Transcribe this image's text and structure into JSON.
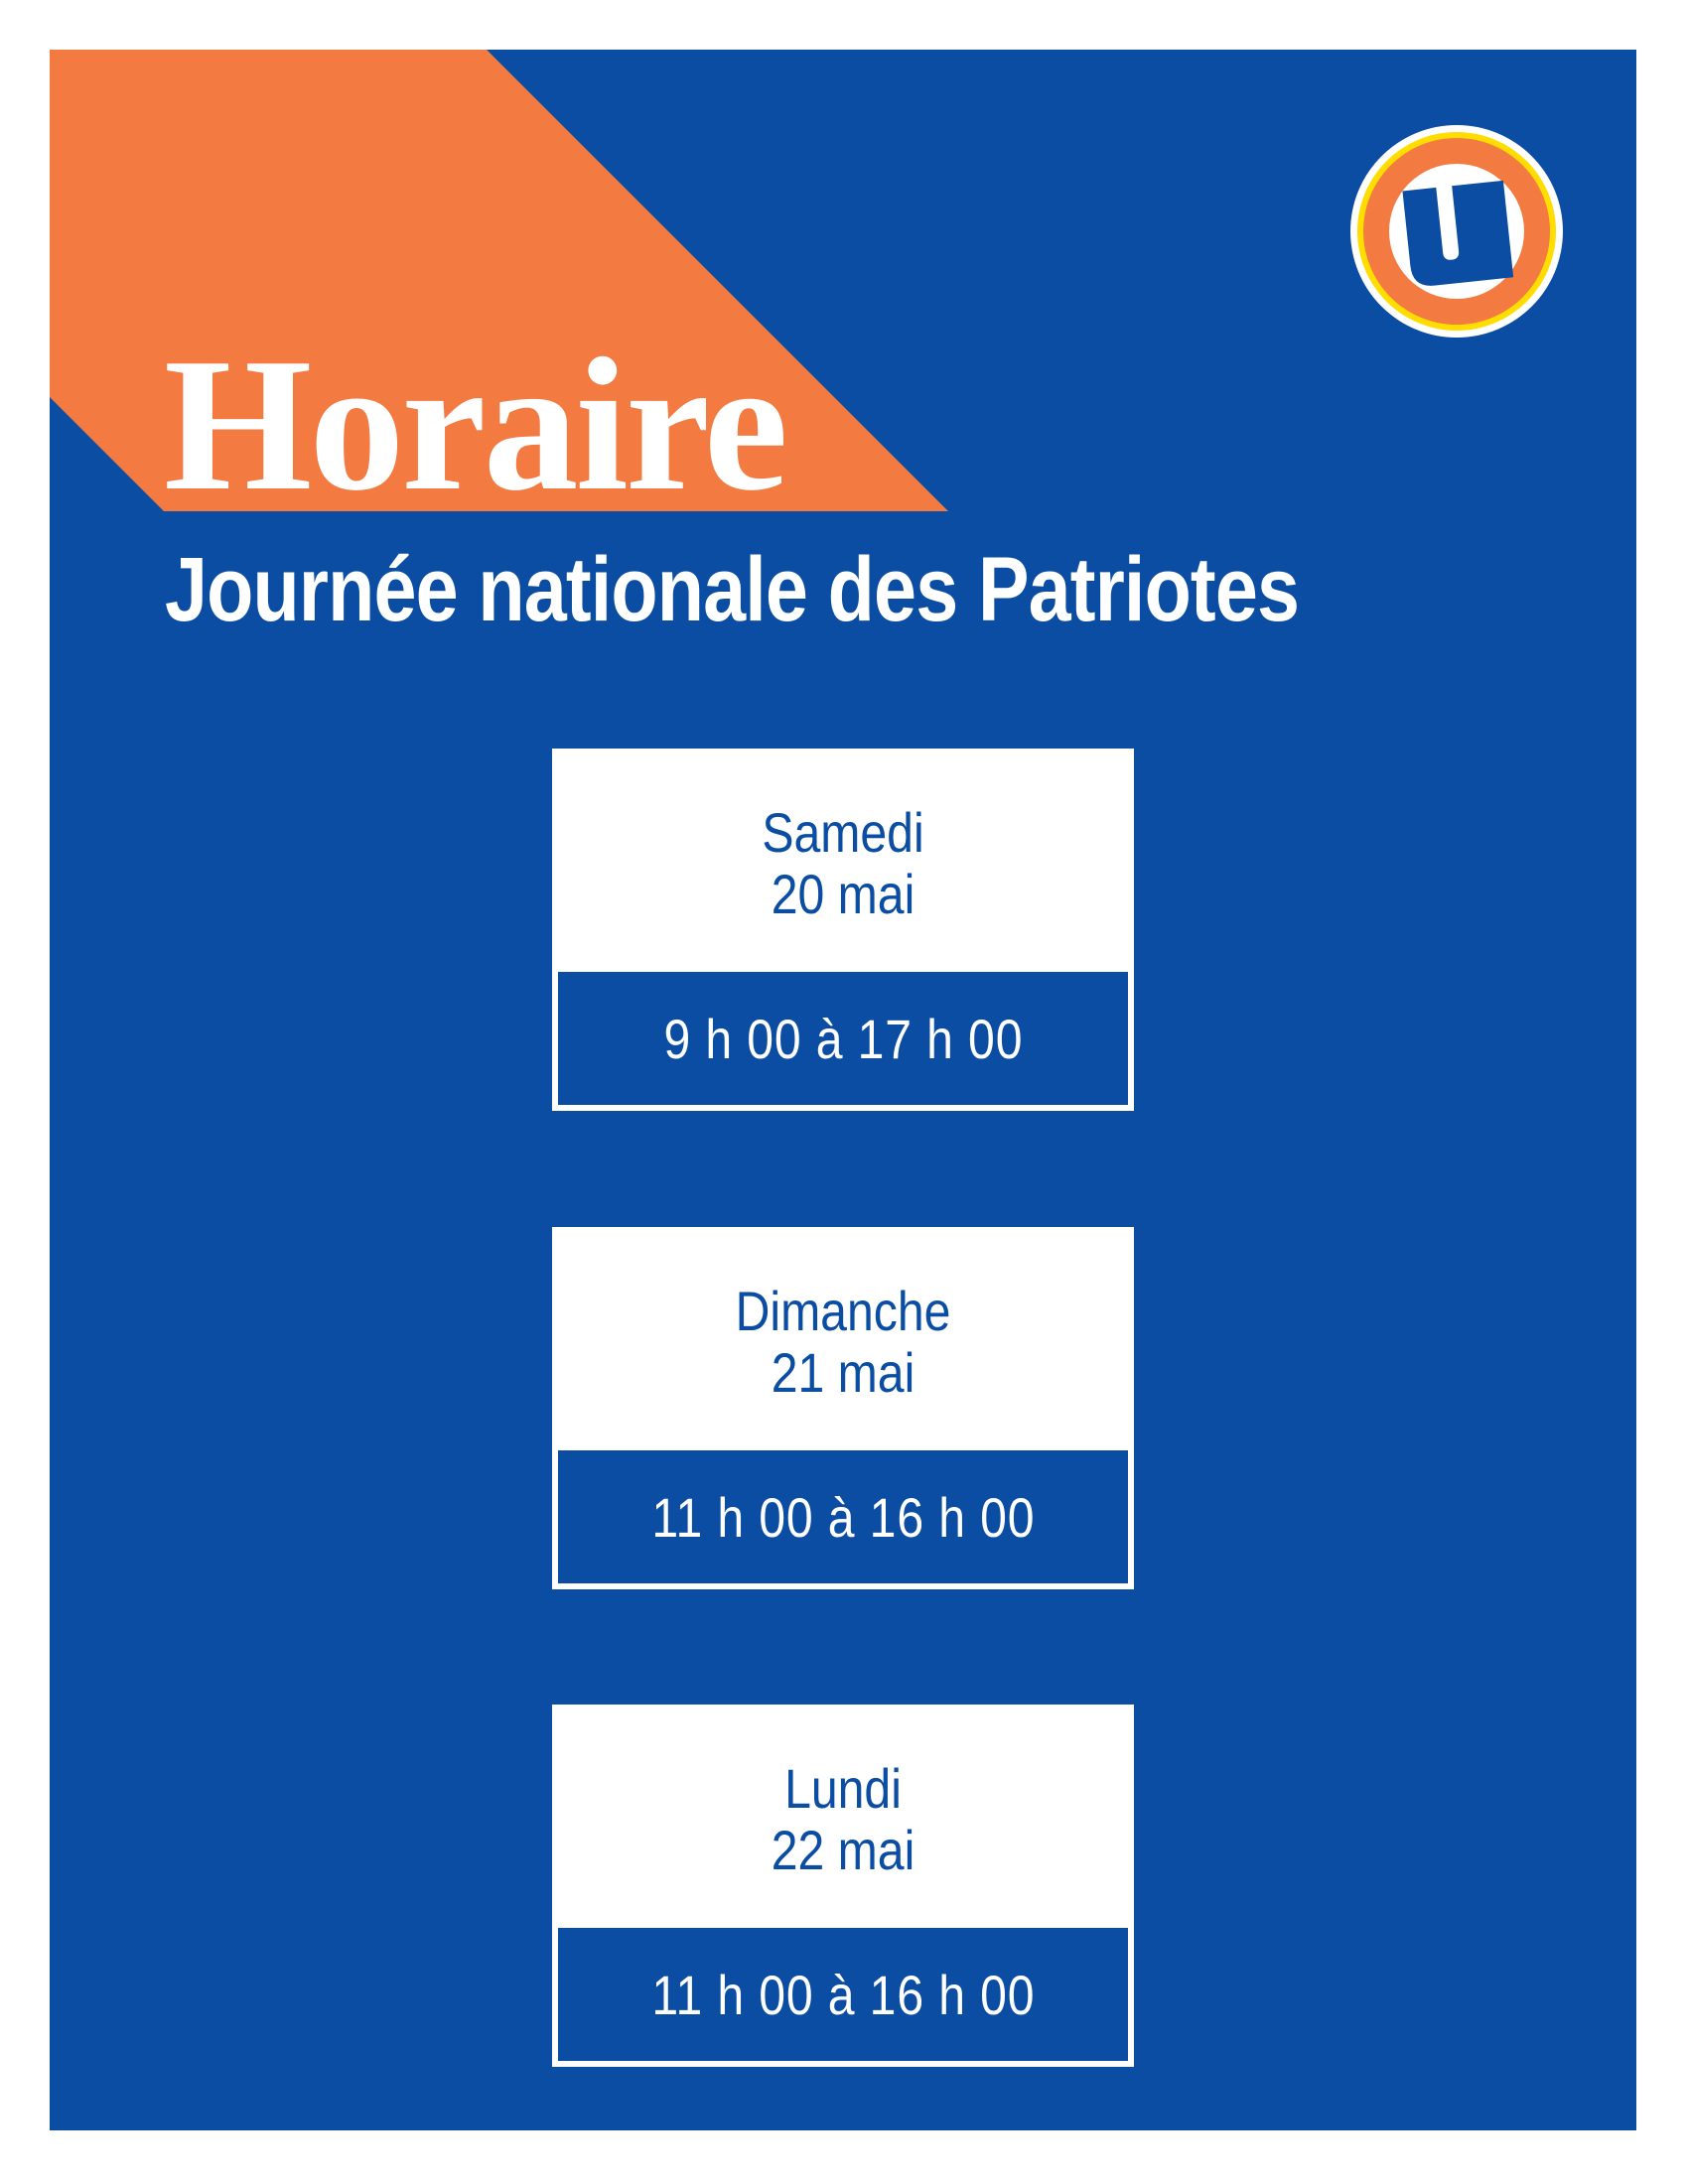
{
  "colors": {
    "brand_blue": "#0a4da2",
    "accent_orange": "#f37b42",
    "logo_yellow": "#ffdd00",
    "background": "#ffffff"
  },
  "header": {
    "title": "Horaire",
    "subtitle": "Journée nationale des Patriotes"
  },
  "logo": {
    "icon": "u-logo-icon"
  },
  "schedule": [
    {
      "day": "Samedi",
      "date": "20 mai",
      "hours": "9 h 00 à 17 h 00"
    },
    {
      "day": "Dimanche",
      "date": "21 mai",
      "hours": "11 h 00 à 16 h 00"
    },
    {
      "day": "Lundi",
      "date": "22 mai",
      "hours": "11 h 00 à 16 h 00"
    }
  ]
}
